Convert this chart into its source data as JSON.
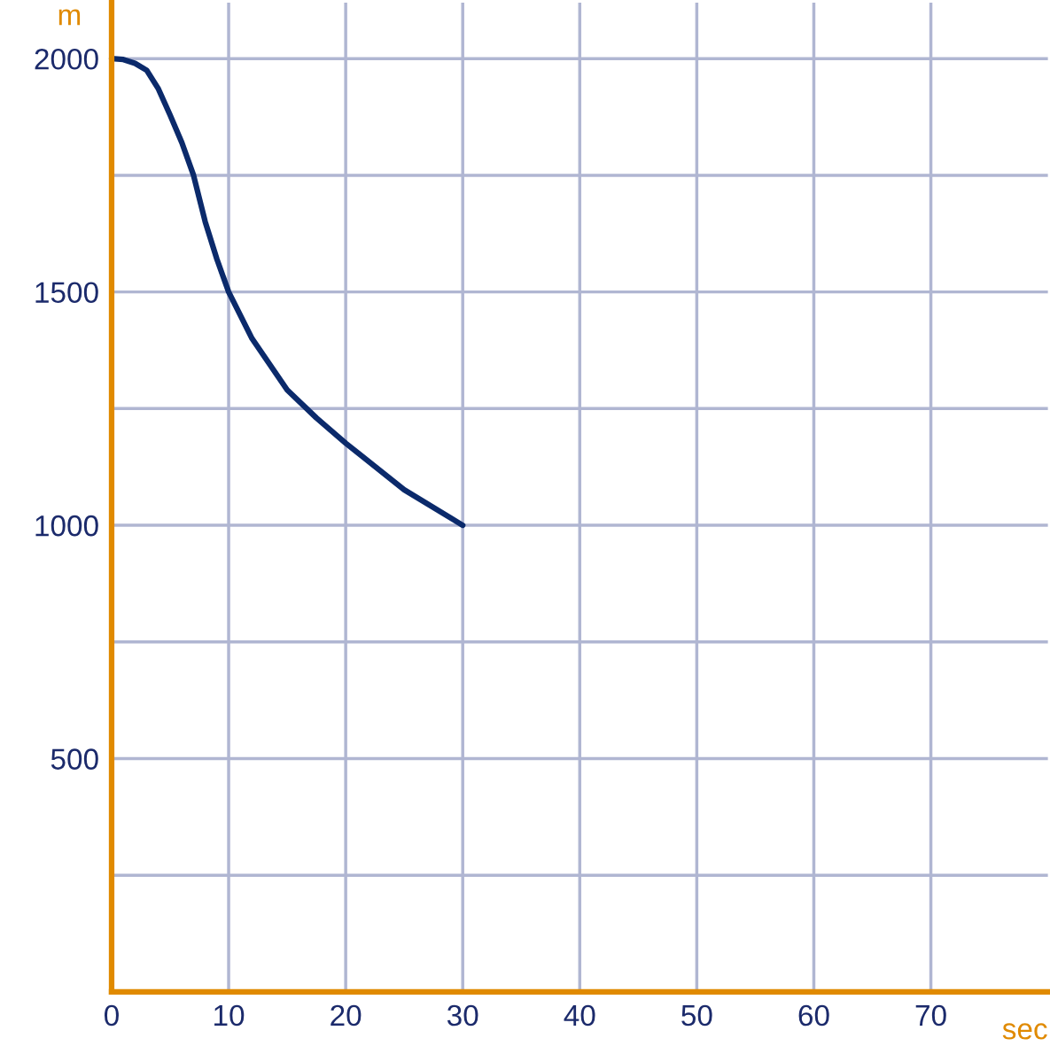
{
  "chart_data": {
    "type": "line",
    "xlabel": "sec",
    "ylabel": "m",
    "x": [
      0,
      1,
      2,
      3,
      4,
      5,
      6,
      7,
      8,
      9,
      10,
      12,
      15,
      17.5,
      20,
      25,
      30
    ],
    "series": [
      {
        "color": "#0b2a6b",
        "values": [
          2000,
          1998,
          1990,
          1975,
          1935,
          1879,
          1820,
          1750,
          1650,
          1570,
          1500,
          1400,
          1290,
          1230,
          1176,
          1076,
          1000
        ]
      }
    ],
    "xlim": [
      0,
      80
    ],
    "ylim": [
      0,
      2120
    ],
    "xticks": [
      0,
      10,
      20,
      30,
      40,
      50,
      60,
      70
    ],
    "yticks": [
      {
        "value": 250,
        "label": null
      },
      500,
      {
        "value": 750,
        "label": null
      },
      1000,
      {
        "value": 1250,
        "label": null
      },
      1500,
      {
        "value": 1750,
        "label": null
      },
      2000
    ],
    "grid": true,
    "marker": "none",
    "line_style": "solid"
  }
}
